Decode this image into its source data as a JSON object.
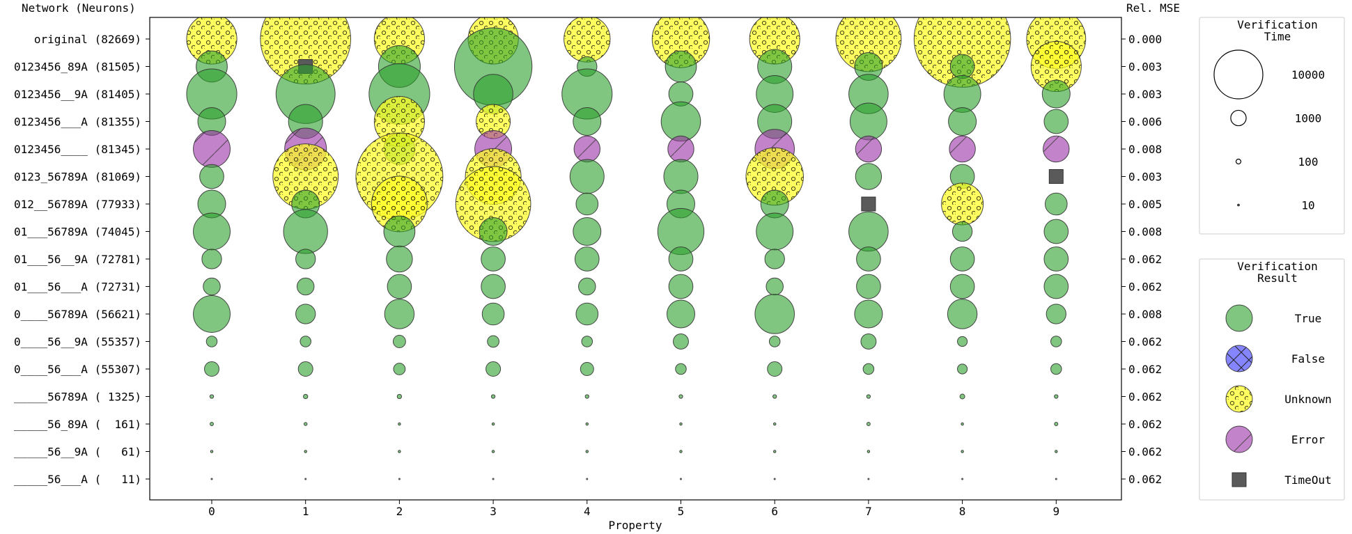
{
  "chart_data": {
    "type": "scatter",
    "subtype": "bubble-matrix",
    "xlabel": "Property",
    "ylabel_left": "Network (Neurons)",
    "ylabel_right": "Rel. MSE",
    "x_ticks": [
      "0",
      "1",
      "2",
      "3",
      "4",
      "5",
      "6",
      "7",
      "8",
      "9"
    ],
    "networks": [
      "original (82669)",
      "0123456_89A (81505)",
      "0123456__9A (81405)",
      "0123456___A (81355)",
      "0123456____ (81345)",
      "0123_56789A (81069)",
      "012__56789A (77933)",
      "01___56789A (74045)",
      "01___56__9A (72781)",
      "01___56___A (72731)",
      "0____56789A (56621)",
      "0____56__9A (55357)",
      "0____56___A (55307)",
      "_____56789A ( 1325)",
      "_____56_89A (  161)",
      "_____56__9A (   61)",
      "_____56___A (   11)"
    ],
    "rel_mse": [
      "0.000",
      "0.003",
      "0.003",
      "0.006",
      "0.008",
      "0.003",
      "0.005",
      "0.008",
      "0.062",
      "0.062",
      "0.008",
      "0.062",
      "0.062",
      "0.062",
      "0.062",
      "0.062",
      "0.062"
    ],
    "result_codes": {
      "T": "True",
      "F": "False",
      "U": "Unknown",
      "E": "Error",
      "O": "TimeOut"
    },
    "colors": {
      "True": "#2ca02c",
      "False": "#3333ff",
      "Unknown": "#ffff22",
      "Error": "#9b30a6",
      "TimeOut": "#5a5a5a",
      "edge": "#333333"
    },
    "cells": [
      [
        [
          "U",
          1300
        ],
        [
          "U",
          4200
        ],
        [
          "U",
          1300
        ],
        [
          "U",
          1300
        ],
        [
          "U",
          1100
        ],
        [
          "U",
          1700
        ],
        [
          "U",
          1300
        ],
        [
          "U",
          2200
        ],
        [
          "U",
          4800
        ],
        [
          "U",
          1800
        ]
      ],
      [
        [
          "T",
          500
        ],
        [
          "O",
          null
        ],
        [
          "T",
          900
        ],
        [
          "T",
          3100
        ],
        [
          "T",
          200
        ],
        [
          "T",
          500
        ],
        [
          "T",
          600
        ],
        [
          "T",
          400
        ],
        [
          "T",
          300
        ],
        [
          "U",
          1300
        ]
      ],
      [
        [
          "T",
          1300
        ],
        [
          "T",
          1800
        ],
        [
          "T",
          1900
        ],
        [
          "T",
          800
        ],
        [
          "T",
          1300
        ],
        [
          "T",
          300
        ],
        [
          "T",
          700
        ],
        [
          "T",
          800
        ],
        [
          "T",
          700
        ],
        [
          "T",
          400
        ]
      ],
      [
        [
          "T",
          400
        ],
        [
          "T",
          600
        ],
        [
          "U",
          1300
        ],
        [
          "U",
          600
        ],
        [
          "T",
          400
        ],
        [
          "T",
          800
        ],
        [
          "T",
          600
        ],
        [
          "T",
          700
        ],
        [
          "T",
          400
        ],
        [
          "T",
          300
        ]
      ],
      [
        [
          "E",
          700
        ],
        [
          "E",
          900
        ],
        [
          "T",
          500
        ],
        [
          "E",
          700
        ],
        [
          "E",
          350
        ],
        [
          "E",
          350
        ],
        [
          "E",
          800
        ],
        [
          "E",
          350
        ],
        [
          "E",
          350
        ],
        [
          "E",
          350
        ]
      ],
      [
        [
          "T",
          300
        ],
        [
          "U",
          2200
        ],
        [
          "U",
          3900
        ],
        [
          "U",
          1600
        ],
        [
          "T",
          600
        ],
        [
          "T",
          600
        ],
        [
          "U",
          1700
        ],
        [
          "T",
          350
        ],
        [
          "T",
          300
        ],
        [
          "O",
          null
        ]
      ],
      [
        [
          "T",
          400
        ],
        [
          "T",
          400
        ],
        [
          "U",
          1600
        ],
        [
          "U",
          2900
        ],
        [
          "T",
          250
        ],
        [
          "T",
          400
        ],
        [
          "T",
          400
        ],
        [
          "O",
          null
        ],
        [
          "U",
          900
        ],
        [
          "T",
          250
        ]
      ],
      [
        [
          "T",
          700
        ],
        [
          "T",
          1000
        ],
        [
          "T",
          500
        ],
        [
          "T",
          400
        ],
        [
          "T",
          400
        ],
        [
          "T",
          1100
        ],
        [
          "T",
          700
        ],
        [
          "T",
          800
        ],
        [
          "T",
          200
        ],
        [
          "T",
          300
        ]
      ],
      [
        [
          "T",
          200
        ],
        [
          "T",
          200
        ],
        [
          "T",
          350
        ],
        [
          "T",
          300
        ],
        [
          "T",
          300
        ],
        [
          "T",
          300
        ],
        [
          "T",
          200
        ],
        [
          "T",
          300
        ],
        [
          "T",
          300
        ],
        [
          "T",
          300
        ]
      ],
      [
        [
          "T",
          150
        ],
        [
          "T",
          150
        ],
        [
          "T",
          300
        ],
        [
          "T",
          300
        ],
        [
          "T",
          150
        ],
        [
          "T",
          300
        ],
        [
          "T",
          150
        ],
        [
          "T",
          300
        ],
        [
          "T",
          300
        ],
        [
          "T",
          300
        ]
      ],
      [
        [
          "T",
          700
        ],
        [
          "T",
          200
        ],
        [
          "T",
          450
        ],
        [
          "T",
          250
        ],
        [
          "T",
          250
        ],
        [
          "T",
          400
        ],
        [
          "T",
          800
        ],
        [
          "T",
          400
        ],
        [
          "T",
          450
        ],
        [
          "T",
          200
        ]
      ],
      [
        [
          "T",
          60
        ],
        [
          "T",
          60
        ],
        [
          "T",
          80
        ],
        [
          "T",
          70
        ],
        [
          "T",
          60
        ],
        [
          "T",
          120
        ],
        [
          "T",
          60
        ],
        [
          "T",
          120
        ],
        [
          "T",
          50
        ],
        [
          "T",
          60
        ]
      ],
      [
        [
          "T",
          110
        ],
        [
          "T",
          110
        ],
        [
          "T",
          70
        ],
        [
          "T",
          110
        ],
        [
          "T",
          90
        ],
        [
          "T",
          60
        ],
        [
          "T",
          110
        ],
        [
          "T",
          60
        ],
        [
          "T",
          50
        ],
        [
          "T",
          60
        ]
      ],
      [
        [
          "T",
          7
        ],
        [
          "T",
          10
        ],
        [
          "T",
          10
        ],
        [
          "T",
          7
        ],
        [
          "T",
          7
        ],
        [
          "T",
          7
        ],
        [
          "T",
          7
        ],
        [
          "T",
          7
        ],
        [
          "T",
          12
        ],
        [
          "T",
          7
        ]
      ],
      [
        [
          "T",
          6
        ],
        [
          "T",
          5
        ],
        [
          "T",
          3
        ],
        [
          "T",
          3
        ],
        [
          "T",
          3
        ],
        [
          "T",
          3
        ],
        [
          "T",
          3
        ],
        [
          "T",
          6
        ],
        [
          "T",
          3
        ],
        [
          "T",
          6
        ]
      ],
      [
        [
          "T",
          3
        ],
        [
          "T",
          3
        ],
        [
          "T",
          3
        ],
        [
          "T",
          3
        ],
        [
          "T",
          3
        ],
        [
          "T",
          3
        ],
        [
          "T",
          3
        ],
        [
          "T",
          3
        ],
        [
          "T",
          3
        ],
        [
          "T",
          3
        ]
      ],
      [
        [
          "T",
          1
        ],
        [
          "T",
          1
        ],
        [
          "T",
          1
        ],
        [
          "T",
          1
        ],
        [
          "T",
          1
        ],
        [
          "T",
          1
        ],
        [
          "T",
          1
        ],
        [
          "T",
          1
        ],
        [
          "T",
          1
        ],
        [
          "T",
          1
        ]
      ]
    ],
    "legend_time": {
      "title_line1": "Verification",
      "title_line2": "Time",
      "entries": [
        {
          "label": "10000",
          "value": 10000
        },
        {
          "label": "1000",
          "value": 1000
        },
        {
          "label": "100",
          "value": 100
        },
        {
          "label": "10",
          "value": 10
        }
      ]
    },
    "legend_result": {
      "title_line1": "Verification",
      "title_line2": "Result",
      "entries": [
        "True",
        "False",
        "Unknown",
        "Error",
        "TimeOut"
      ]
    }
  }
}
